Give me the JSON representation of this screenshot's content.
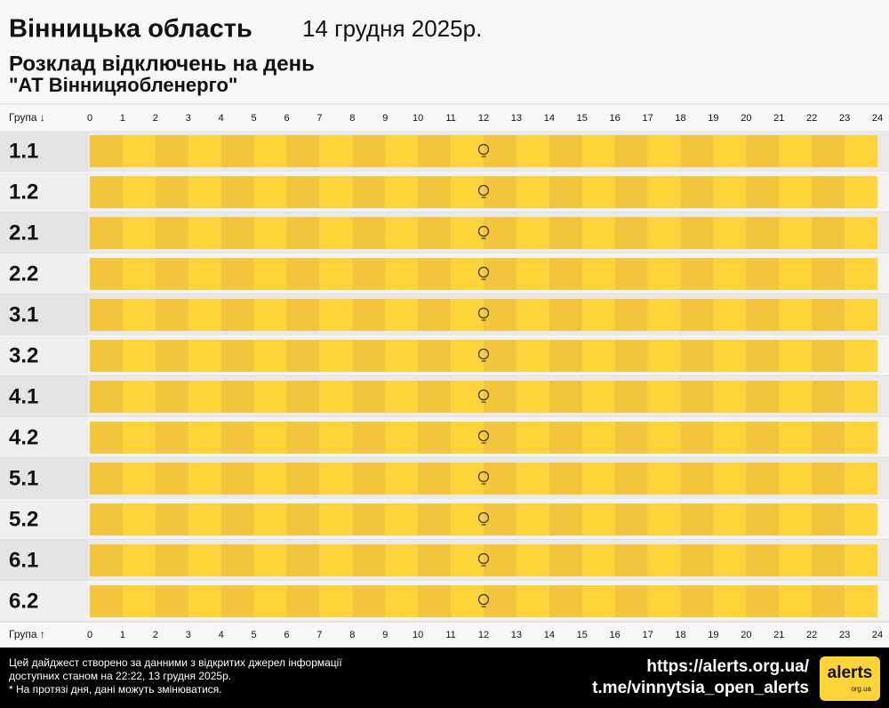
{
  "header": {
    "region": "Вінницька область",
    "date": "14 грудня 2025р.",
    "subtitle": "Розклад відключень на день",
    "company": "\"АТ Вінницяобленерго\""
  },
  "table": {
    "group_header_top": "Група ↓",
    "group_header_bottom": "Група ↑",
    "hours": [
      "0",
      "1",
      "2",
      "3",
      "4",
      "5",
      "6",
      "7",
      "8",
      "9",
      "10",
      "11",
      "12",
      "13",
      "14",
      "15",
      "16",
      "17",
      "18",
      "19",
      "20",
      "21",
      "22",
      "23",
      "24"
    ],
    "groups": [
      "1.1",
      "1.2",
      "2.1",
      "2.2",
      "3.1",
      "3.2",
      "4.1",
      "4.2",
      "5.1",
      "5.2",
      "6.1",
      "6.2"
    ]
  },
  "footer": {
    "note_lines": [
      "Цей дайджест створено за данними з відкритих джерел інформації",
      "доступних станом на 22:22, 13 грудня 2025р.",
      "* На протязі дня, дані можуть змінюватися."
    ],
    "links": [
      "https://alerts.org.ua/",
      "t.me/vinnytsia_open_alerts"
    ],
    "logo": "alerts",
    "logo_sub": "org.ua"
  }
}
